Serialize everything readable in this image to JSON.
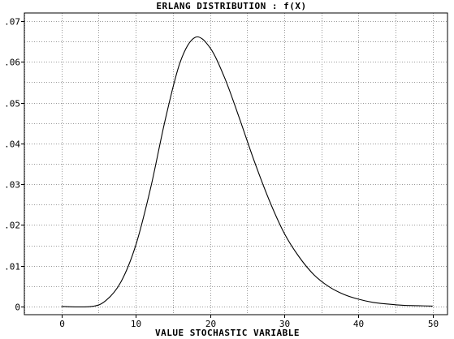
{
  "chart_data": {
    "type": "line",
    "title": "ERLANG DISTRIBUTION : f(X)",
    "xlabel": "VALUE STOCHASTIC VARIABLE",
    "ylabel": "",
    "xlim": [
      -5,
      52
    ],
    "ylim": [
      -0.002,
      0.072
    ],
    "x_ticks": [
      0,
      10,
      20,
      30,
      40,
      50
    ],
    "x_tick_labels": [
      "0",
      "10",
      "20",
      "30",
      "40",
      "50"
    ],
    "y_ticks": [
      0,
      0.01,
      0.02,
      0.03,
      0.04,
      0.05,
      0.06,
      0.07
    ],
    "y_tick_labels": [
      "0",
      ".01",
      ".02",
      ".03",
      ".04",
      ".05",
      ".06",
      ".07"
    ],
    "x_grid_every": 5,
    "y_grid_every": 0.005,
    "grid": true,
    "series": [
      {
        "x": [
          0,
          4,
          6,
          8,
          10,
          12,
          14,
          16,
          18,
          20,
          22,
          24,
          26,
          28,
          30,
          32,
          34,
          36,
          38,
          40,
          42,
          44,
          46,
          48,
          50
        ],
        "y": [
          0,
          0,
          0.0015,
          0.006,
          0.015,
          0.029,
          0.046,
          0.06,
          0.066,
          0.0635,
          0.056,
          0.046,
          0.0355,
          0.026,
          0.018,
          0.0122,
          0.0078,
          0.0049,
          0.003,
          0.0018,
          0.001,
          0.0006,
          0.0003,
          0.0002,
          0.0001
        ]
      }
    ],
    "line_color": "#000000"
  }
}
